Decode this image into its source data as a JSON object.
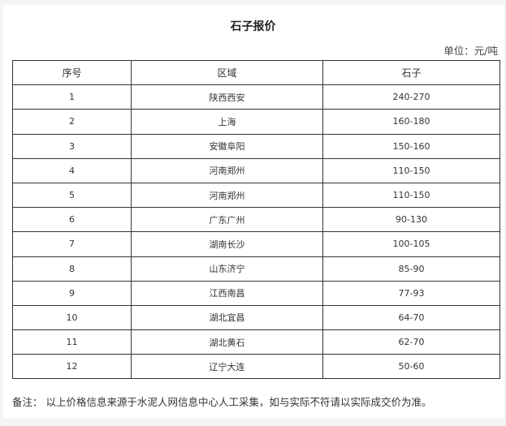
{
  "title": "石子报价",
  "unit": "单位：元/吨",
  "table": {
    "headers": [
      "序号",
      "区域",
      "石子"
    ],
    "rows": [
      [
        "1",
        "陕西西安",
        "240-270"
      ],
      [
        "2",
        "上海",
        "160-180"
      ],
      [
        "3",
        "安徽阜阳",
        "150-160"
      ],
      [
        "4",
        "河南郑州",
        "110-150"
      ],
      [
        "5",
        "河南郑州",
        "110-150"
      ],
      [
        "6",
        "广东广州",
        "90-130"
      ],
      [
        "7",
        "湖南长沙",
        "100-105"
      ],
      [
        "8",
        "山东济宁",
        "85-90"
      ],
      [
        "9",
        "江西南昌",
        "77-93"
      ],
      [
        "10",
        "湖北宜昌",
        "64-70"
      ],
      [
        "11",
        "湖北黄石",
        "62-70"
      ],
      [
        "12",
        "辽宁大连",
        "50-60"
      ]
    ]
  },
  "note": "备注：  以上价格信息来源于水泥人网信息中心人工采集，如与实际不符请以实际成交价为准。"
}
